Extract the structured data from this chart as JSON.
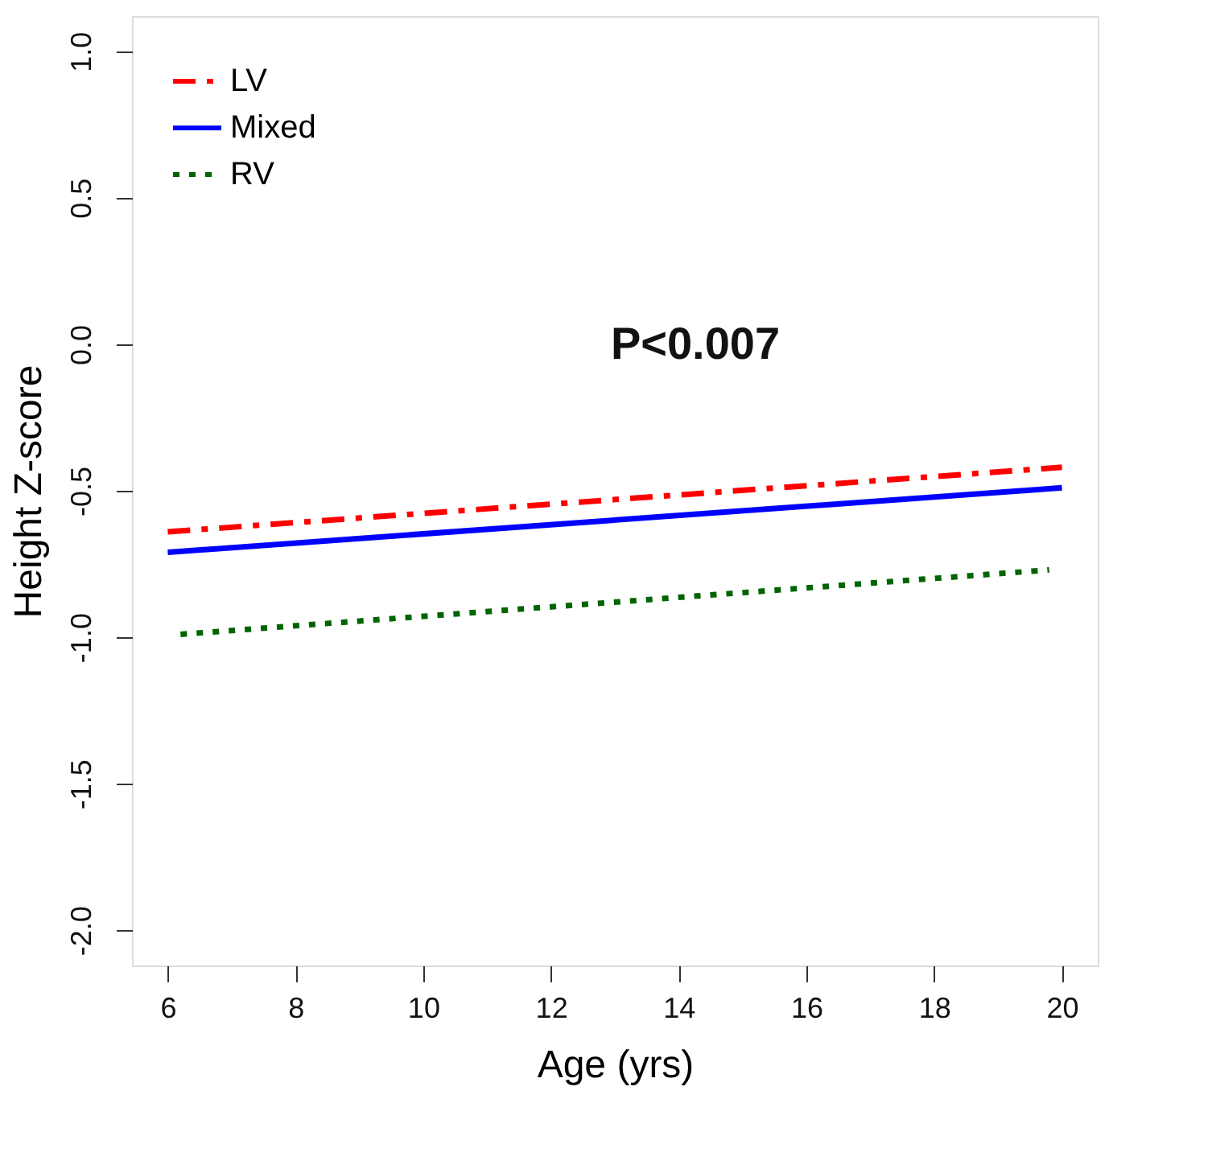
{
  "chart_data": {
    "type": "line",
    "xlabel": "Age (yrs)",
    "ylabel": "Height Z-score",
    "xlim": [
      5.44,
      20.56
    ],
    "xticks": [
      6,
      8,
      10,
      12,
      14,
      16,
      18,
      20
    ],
    "ylim": [
      -2.12,
      1.12
    ],
    "yticks": [
      {
        "value": -2,
        "label": "-2.0"
      },
      -1.5,
      {
        "value": -1,
        "label": "-1.0"
      },
      -0.5,
      {
        "value": 0,
        "label": "0.0"
      },
      0.5,
      {
        "value": 1,
        "label": "1.0"
      }
    ],
    "grid": false,
    "legend": "top left",
    "marker": "none",
    "series": [
      {
        "name": "LV",
        "color": "#ff0000",
        "line_style": "dashdot",
        "x": [
          6,
          20
        ],
        "values": [
          -0.64,
          -0.42
        ]
      },
      {
        "name": "Mixed",
        "color": "#0000ff",
        "line_style": "solid",
        "x": [
          6,
          20
        ],
        "values": [
          -0.71,
          -0.49
        ]
      },
      {
        "name": "RV",
        "color": "#006400",
        "line_style": "dotted",
        "x": [
          6.2,
          19.8
        ],
        "values": [
          -0.99,
          -0.77
        ]
      }
    ],
    "annotations": [
      "P<0.007"
    ]
  }
}
